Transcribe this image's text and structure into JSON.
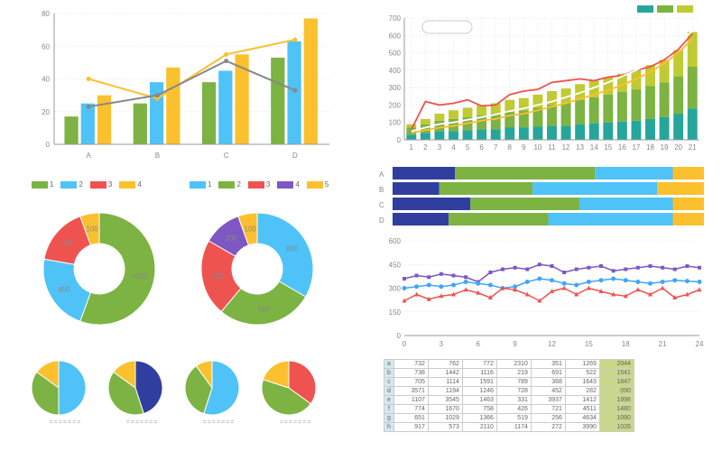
{
  "grouped_bar": {
    "type": "bar+line",
    "categories": [
      "A",
      "B",
      "C",
      "D"
    ],
    "series": [
      {
        "name": "green",
        "color": "#7cb342",
        "values": [
          17,
          25,
          38,
          53
        ]
      },
      {
        "name": "blue",
        "color": "#4fc3f7",
        "values": [
          25,
          38,
          45,
          63
        ]
      },
      {
        "name": "yellow",
        "color": "#fbc02d",
        "values": [
          30,
          47,
          55,
          77
        ]
      }
    ],
    "lines": [
      {
        "name": "yellow-line",
        "color": "#fbc02d",
        "values": [
          40,
          28,
          55,
          64
        ]
      },
      {
        "name": "gray-line",
        "color": "#888888",
        "values": [
          23,
          30,
          51,
          33
        ]
      }
    ],
    "ylim": [
      0,
      80
    ],
    "ytick_step": 20,
    "grid_color": "#e0e0e0",
    "background": "#ffffff"
  },
  "stacked_bar_line": {
    "type": "stacked-bar+line",
    "x": [
      1,
      2,
      3,
      4,
      5,
      6,
      7,
      8,
      9,
      10,
      11,
      12,
      13,
      14,
      15,
      16,
      17,
      18,
      19,
      20,
      21
    ],
    "stacks": [
      {
        "name": "teal",
        "color": "#26a69a"
      },
      {
        "name": "green",
        "color": "#7cb342"
      },
      {
        "name": "lime",
        "color": "#c0ca33"
      }
    ],
    "stack_values": [
      [
        30,
        40,
        20
      ],
      [
        40,
        50,
        30
      ],
      [
        50,
        60,
        40
      ],
      [
        50,
        70,
        50
      ],
      [
        55,
        75,
        55
      ],
      [
        60,
        80,
        60
      ],
      [
        60,
        90,
        60
      ],
      [
        70,
        90,
        70
      ],
      [
        70,
        100,
        70
      ],
      [
        75,
        110,
        75
      ],
      [
        80,
        120,
        80
      ],
      [
        80,
        130,
        85
      ],
      [
        90,
        140,
        90
      ],
      [
        95,
        150,
        95
      ],
      [
        100,
        160,
        100
      ],
      [
        105,
        170,
        105
      ],
      [
        110,
        180,
        110
      ],
      [
        120,
        190,
        120
      ],
      [
        130,
        200,
        130
      ],
      [
        150,
        215,
        150
      ],
      [
        180,
        240,
        200
      ]
    ],
    "lines": [
      {
        "name": "red",
        "color": "#ef5350",
        "values": [
          60,
          220,
          200,
          210,
          230,
          195,
          200,
          260,
          280,
          290,
          330,
          340,
          350,
          340,
          360,
          370,
          400,
          420,
          460,
          520,
          610
        ]
      },
      {
        "name": "yellow",
        "color": "#fbc02d",
        "values": [
          40,
          55,
          70,
          80,
          95,
          110,
          120,
          140,
          150,
          170,
          190,
          210,
          235,
          260,
          285,
          315,
          350,
          390,
          440,
          500,
          580
        ]
      },
      {
        "name": "white",
        "color": "#ffffff",
        "stroke": "#ddd",
        "values": [
          50,
          70,
          90,
          100,
          115,
          130,
          145,
          165,
          180,
          200,
          220,
          245,
          270,
          300,
          330,
          365,
          400,
          445,
          495,
          555,
          625
        ]
      }
    ],
    "ylim": [
      0,
      700
    ],
    "ytick_step": 100,
    "legend_colors": [
      "#26a69a",
      "#7cb342",
      "#c0ca33"
    ]
  },
  "donut1": {
    "type": "donut",
    "legend": [
      {
        "label": "1",
        "color": "#7cb342"
      },
      {
        "label": "2",
        "color": "#4fc3f7"
      },
      {
        "label": "3",
        "color": "#ef5350"
      },
      {
        "label": "4",
        "color": "#fbc02d"
      }
    ],
    "slices": [
      {
        "label": "1000",
        "value": 1000,
        "color": "#7cb342"
      },
      {
        "label": "400",
        "value": 400,
        "color": "#4fc3f7"
      },
      {
        "label": "300",
        "value": 300,
        "color": "#ef5350"
      },
      {
        "label": "100",
        "value": 100,
        "color": "#fbc02d"
      }
    ]
  },
  "donut2": {
    "type": "donut",
    "legend": [
      {
        "label": "1",
        "color": "#4fc3f7"
      },
      {
        "label": "2",
        "color": "#7cb342"
      },
      {
        "label": "3",
        "color": "#ef5350"
      },
      {
        "label": "4",
        "color": "#7e57c2"
      },
      {
        "label": "5",
        "color": "#fbc02d"
      }
    ],
    "slices": [
      {
        "label": "600",
        "value": 600,
        "color": "#4fc3f7"
      },
      {
        "label": "500",
        "value": 500,
        "color": "#7cb342"
      },
      {
        "label": "400",
        "value": 400,
        "color": "#ef5350"
      },
      {
        "label": "200",
        "value": 200,
        "color": "#7e57c2"
      },
      {
        "label": "100",
        "value": 100,
        "color": "#fbc02d"
      }
    ]
  },
  "small_pies": [
    {
      "slices": [
        {
          "value": 50,
          "color": "#4fc3f7"
        },
        {
          "value": 35,
          "color": "#7cb342"
        },
        {
          "value": 15,
          "color": "#fbc02d"
        }
      ]
    },
    {
      "slices": [
        {
          "value": 45,
          "color": "#303f9f"
        },
        {
          "value": 40,
          "color": "#7cb342"
        },
        {
          "value": 15,
          "color": "#fbc02d"
        }
      ]
    },
    {
      "slices": [
        {
          "value": 55,
          "color": "#4fc3f7"
        },
        {
          "value": 35,
          "color": "#7cb342"
        },
        {
          "value": 10,
          "color": "#fbc02d"
        }
      ]
    },
    {
      "slices": [
        {
          "value": 35,
          "color": "#ef5350"
        },
        {
          "value": 45,
          "color": "#7cb342"
        },
        {
          "value": 20,
          "color": "#fbc02d"
        }
      ]
    }
  ],
  "small_pie_caption": "=======",
  "hstacked": {
    "type": "stacked-hbar",
    "rows": [
      "A",
      "B",
      "C",
      "D"
    ],
    "segments": [
      {
        "color": "#303f9f"
      },
      {
        "color": "#7cb342"
      },
      {
        "color": "#4fc3f7"
      },
      {
        "color": "#fbc02d"
      }
    ],
    "values": [
      [
        20,
        45,
        25,
        10
      ],
      [
        15,
        30,
        40,
        15
      ],
      [
        25,
        35,
        30,
        10
      ],
      [
        18,
        32,
        40,
        10
      ]
    ]
  },
  "multiline": {
    "type": "line",
    "x": [
      0,
      1,
      2,
      3,
      4,
      5,
      6,
      7,
      8,
      9,
      10,
      11,
      12,
      13,
      14,
      15,
      16,
      17,
      18,
      19,
      20,
      21,
      22,
      23,
      24
    ],
    "series": [
      {
        "name": "purple",
        "color": "#7e57c2",
        "marker": "square",
        "values": [
          360,
          380,
          370,
          390,
          380,
          370,
          340,
          400,
          420,
          430,
          420,
          450,
          440,
          400,
          420,
          430,
          440,
          410,
          420,
          430,
          440,
          430,
          420,
          440,
          430
        ]
      },
      {
        "name": "blue",
        "color": "#42a5f5",
        "marker": "circle",
        "values": [
          300,
          310,
          320,
          310,
          320,
          340,
          330,
          320,
          300,
          310,
          340,
          360,
          350,
          330,
          320,
          340,
          350,
          360,
          350,
          340,
          330,
          340,
          350,
          345,
          340
        ]
      },
      {
        "name": "red",
        "color": "#ef5350",
        "marker": "triangle",
        "values": [
          220,
          260,
          230,
          250,
          260,
          290,
          270,
          240,
          300,
          290,
          260,
          220,
          280,
          300,
          260,
          300,
          280,
          260,
          250,
          290,
          260,
          300,
          240,
          260,
          290
        ]
      }
    ],
    "ylim": [
      0,
      600
    ],
    "yticks": [
      0,
      150,
      300,
      450,
      600
    ],
    "xticks": [
      0,
      3,
      6,
      9,
      12,
      15,
      18,
      21,
      24
    ]
  },
  "table": {
    "rows": [
      "a",
      "b",
      "c",
      "d",
      "e",
      "f",
      "g",
      "h"
    ],
    "data": [
      [
        732,
        762,
        772,
        2310,
        351,
        1269,
        2044
      ],
      [
        738,
        1442,
        1116,
        219,
        691,
        522,
        1541
      ],
      [
        705,
        1114,
        1591,
        789,
        368,
        1643,
        1847
      ],
      [
        3571,
        1194,
        1246,
        728,
        452,
        282,
        "090"
      ],
      [
        1107,
        3545,
        1463,
        331,
        3937,
        1412,
        1998
      ],
      [
        774,
        1670,
        758,
        426,
        721,
        4511,
        1480
      ],
      [
        651,
        1029,
        1366,
        519,
        256,
        4634,
        1090
      ],
      [
        917,
        573,
        2110,
        1174,
        272,
        3990,
        1026
      ]
    ],
    "highlight_col": 6
  }
}
